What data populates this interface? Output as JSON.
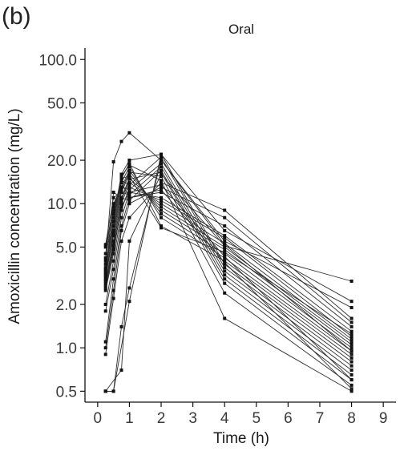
{
  "panel_label": "(b)",
  "chart_data": {
    "type": "line",
    "title": "Oral",
    "xlabel": "Time (h)",
    "ylabel": "Amoxicillin concentration (mg/L)",
    "xlim": [
      -0.4,
      9.4
    ],
    "ylim": [
      0.42,
      120
    ],
    "y_scale": "log",
    "grid": false,
    "x_ticks": [
      0,
      1,
      2,
      3,
      4,
      5,
      6,
      7,
      8,
      9
    ],
    "x_tick_labels": [
      "0",
      "1",
      "2",
      "3",
      "4",
      "5",
      "6",
      "7",
      "8",
      "9"
    ],
    "y_ticks": [
      0.5,
      1.0,
      2.0,
      5.0,
      10.0,
      20.0,
      50.0,
      100.0
    ],
    "y_tick_labels": [
      "0.5",
      "1.0",
      "2.0",
      "5.0",
      "10.0",
      "20.0",
      "50.0",
      "100.0"
    ],
    "series": [
      {
        "points": [
          [
            0.25,
            0.5
          ],
          [
            0.5,
            0.5
          ],
          [
            1,
            2.1
          ],
          [
            2,
            22
          ],
          [
            4,
            6.5
          ],
          [
            8,
            2.1
          ]
        ]
      },
      {
        "points": [
          [
            0.25,
            0.5
          ],
          [
            0.5,
            0.5
          ],
          [
            0.75,
            1.4
          ],
          [
            1,
            2.6
          ],
          [
            2,
            20
          ],
          [
            4,
            5.5
          ],
          [
            8,
            1.9
          ]
        ]
      },
      {
        "points": [
          [
            0.25,
            0.5
          ],
          [
            0.75,
            0.7
          ],
          [
            1,
            5.5
          ],
          [
            2,
            16
          ],
          [
            4,
            5.1
          ],
          [
            8,
            2.9
          ]
        ]
      },
      {
        "points": [
          [
            0.25,
            0.9
          ],
          [
            0.5,
            2.2
          ],
          [
            0.75,
            5.5
          ],
          [
            1,
            8
          ],
          [
            2,
            14
          ],
          [
            4,
            9
          ],
          [
            8,
            1.6
          ]
        ]
      },
      {
        "points": [
          [
            0.25,
            1.0
          ],
          [
            0.5,
            2.5
          ],
          [
            0.75,
            6.5
          ],
          [
            1,
            10
          ],
          [
            2,
            13
          ],
          [
            4,
            8
          ],
          [
            8,
            1.5
          ]
        ]
      },
      {
        "points": [
          [
            0.25,
            1.1
          ],
          [
            0.5,
            3
          ],
          [
            0.75,
            7
          ],
          [
            1,
            11
          ],
          [
            2,
            12
          ],
          [
            4,
            7
          ],
          [
            8,
            1.4
          ]
        ]
      },
      {
        "points": [
          [
            0.25,
            1.8
          ],
          [
            0.5,
            3.5
          ],
          [
            0.75,
            8
          ],
          [
            1,
            12
          ],
          [
            2,
            11
          ],
          [
            4,
            6
          ],
          [
            8,
            1.3
          ]
        ]
      },
      {
        "points": [
          [
            0.25,
            2.0
          ],
          [
            0.5,
            4
          ],
          [
            0.75,
            9
          ],
          [
            1,
            13
          ],
          [
            2,
            10.5
          ],
          [
            4,
            5.8
          ],
          [
            8,
            1.2
          ]
        ]
      },
      {
        "points": [
          [
            0.25,
            2.5
          ],
          [
            0.5,
            4.5
          ],
          [
            0.75,
            10
          ],
          [
            1,
            14
          ],
          [
            2,
            10
          ],
          [
            4,
            5.3
          ],
          [
            8,
            1.15
          ]
        ]
      },
      {
        "points": [
          [
            0.25,
            2.7
          ],
          [
            0.5,
            5
          ],
          [
            0.75,
            11
          ],
          [
            1,
            15
          ],
          [
            2,
            9.5
          ],
          [
            4,
            5
          ],
          [
            8,
            1.1
          ]
        ]
      },
      {
        "points": [
          [
            0.25,
            2.9
          ],
          [
            0.5,
            5.5
          ],
          [
            0.75,
            12
          ],
          [
            1,
            16
          ],
          [
            2,
            9
          ],
          [
            4,
            4.8
          ],
          [
            8,
            1.05
          ]
        ]
      },
      {
        "points": [
          [
            0.25,
            3.1
          ],
          [
            0.5,
            6
          ],
          [
            0.75,
            13
          ],
          [
            1,
            17
          ],
          [
            2,
            8.5
          ],
          [
            4,
            4.5
          ],
          [
            8,
            1.0
          ]
        ]
      },
      {
        "points": [
          [
            0.25,
            3.3
          ],
          [
            0.5,
            6.5
          ],
          [
            0.75,
            14
          ],
          [
            1,
            18
          ],
          [
            2,
            8
          ],
          [
            4,
            4.2
          ],
          [
            8,
            0.95
          ]
        ]
      },
      {
        "points": [
          [
            0.25,
            3.5
          ],
          [
            0.5,
            7
          ],
          [
            0.75,
            15
          ],
          [
            1,
            19
          ],
          [
            2,
            7
          ],
          [
            4,
            4
          ],
          [
            8,
            0.9
          ]
        ]
      },
      {
        "points": [
          [
            0.25,
            3.8
          ],
          [
            0.5,
            8
          ],
          [
            0.75,
            16
          ],
          [
            1,
            20
          ],
          [
            2,
            22
          ],
          [
            4,
            3.8
          ],
          [
            8,
            0.85
          ]
        ]
      },
      {
        "points": [
          [
            0.25,
            4.2
          ],
          [
            0.5,
            9
          ],
          [
            0.75,
            14.5
          ],
          [
            1,
            13.5
          ],
          [
            2,
            21
          ],
          [
            4,
            3.6
          ],
          [
            8,
            0.8
          ]
        ]
      },
      {
        "points": [
          [
            0.25,
            4.5
          ],
          [
            0.5,
            10
          ],
          [
            0.75,
            13
          ],
          [
            1,
            12.5
          ],
          [
            2,
            19
          ],
          [
            4,
            3.4
          ],
          [
            8,
            0.75
          ]
        ]
      },
      {
        "points": [
          [
            0.25,
            5.2
          ],
          [
            0.5,
            11
          ],
          [
            0.75,
            12
          ],
          [
            1,
            11.5
          ],
          [
            2,
            18
          ],
          [
            4,
            3.2
          ],
          [
            8,
            0.7
          ]
        ]
      },
      {
        "points": [
          [
            0.25,
            3.0
          ],
          [
            0.5,
            12
          ],
          [
            0.75,
            11
          ],
          [
            1,
            10.5
          ],
          [
            2,
            17
          ],
          [
            4,
            3.0
          ],
          [
            8,
            0.65
          ]
        ]
      },
      {
        "points": [
          [
            0.25,
            2.8
          ],
          [
            0.5,
            5.2
          ],
          [
            0.75,
            10.5
          ],
          [
            1,
            14.8
          ],
          [
            2,
            16.5
          ],
          [
            4,
            2.8
          ],
          [
            8,
            0.6
          ]
        ]
      },
      {
        "points": [
          [
            0.25,
            3.2
          ],
          [
            0.5,
            6.2
          ],
          [
            0.75,
            12.5
          ],
          [
            1,
            16.5
          ],
          [
            2,
            15.5
          ],
          [
            4,
            2.4
          ],
          [
            8,
            0.55
          ]
        ]
      },
      {
        "points": [
          [
            0.25,
            3.6
          ],
          [
            0.5,
            7.5
          ],
          [
            0.75,
            15.5
          ],
          [
            1,
            18.5
          ],
          [
            2,
            14.5
          ],
          [
            4,
            1.6
          ],
          [
            8,
            0.5
          ]
        ]
      },
      {
        "points": [
          [
            0.25,
            2.6
          ],
          [
            0.5,
            4.8
          ],
          [
            0.75,
            9.5
          ],
          [
            1,
            12
          ],
          [
            2,
            13.5
          ],
          [
            4,
            4.3
          ],
          [
            8,
            0.6
          ]
        ]
      },
      {
        "points": [
          [
            0.25,
            5.0
          ],
          [
            0.5,
            9.5
          ],
          [
            0.75,
            14
          ],
          [
            1,
            11
          ],
          [
            2,
            12.5
          ],
          [
            4,
            3.9
          ],
          [
            8,
            0.52
          ]
        ]
      },
      {
        "points": [
          [
            0.25,
            4.0
          ],
          [
            0.5,
            19.5
          ],
          [
            0.75,
            27
          ],
          [
            1,
            31
          ],
          [
            2,
            20
          ],
          [
            4,
            5.2
          ],
          [
            8,
            0.95
          ]
        ]
      },
      {
        "points": [
          [
            0.25,
            3.4
          ],
          [
            0.5,
            8.5
          ],
          [
            0.75,
            15
          ],
          [
            1,
            15.5
          ],
          [
            2,
            6.8
          ],
          [
            4,
            4.6
          ],
          [
            8,
            1.25
          ]
        ]
      }
    ]
  }
}
